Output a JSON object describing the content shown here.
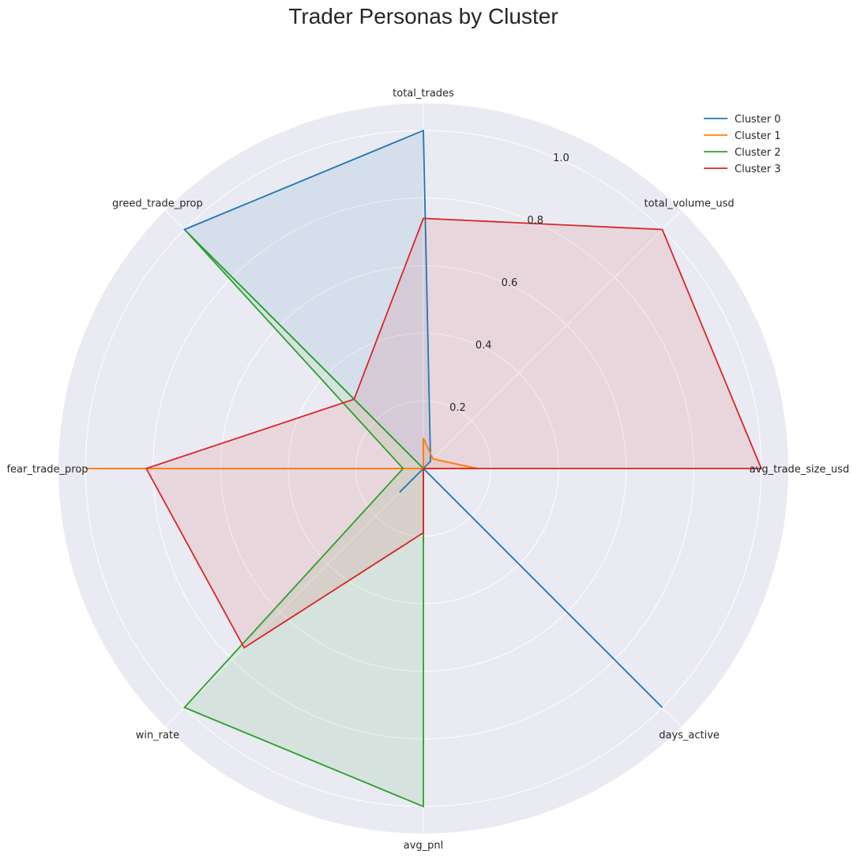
{
  "chart_data": {
    "type": "radar",
    "title": "Trader Personas by Cluster",
    "axes": [
      "total_trades",
      "total_volume_usd",
      "avg_trade_size_usd",
      "days_active",
      "avg_pnl",
      "win_rate",
      "fear_trade_prop",
      "greed_trade_prop"
    ],
    "rlim": [
      0,
      1.08
    ],
    "rticks": [
      0.2,
      0.4,
      0.6,
      0.8,
      1.0
    ],
    "rtick_labels": [
      "0.2",
      "0.4",
      "0.6",
      "0.8",
      "1.0"
    ],
    "grid": true,
    "legend_position": "top-right",
    "colors": {
      "background": "#eaeaf2",
      "grid": "#ffffff"
    },
    "series": [
      {
        "name": "Cluster 0",
        "color": "#1f77b4",
        "values": [
          1.0,
          0.03,
          0.0,
          1.0,
          0.0,
          0.1,
          0.0,
          1.0
        ]
      },
      {
        "name": "Cluster 1",
        "color": "#ff7f0e",
        "values": [
          0.09,
          0.04,
          0.16,
          0.0,
          0.22,
          0.0,
          1.0,
          0.0
        ]
      },
      {
        "name": "Cluster 2",
        "color": "#2ca02c",
        "values": [
          0.0,
          0.0,
          0.0,
          0.0,
          1.0,
          1.0,
          0.06,
          0.99
        ]
      },
      {
        "name": "Cluster 3",
        "color": "#d62728",
        "values": [
          0.74,
          1.0,
          1.0,
          0.0,
          0.19,
          0.75,
          0.82,
          0.29
        ]
      }
    ]
  }
}
